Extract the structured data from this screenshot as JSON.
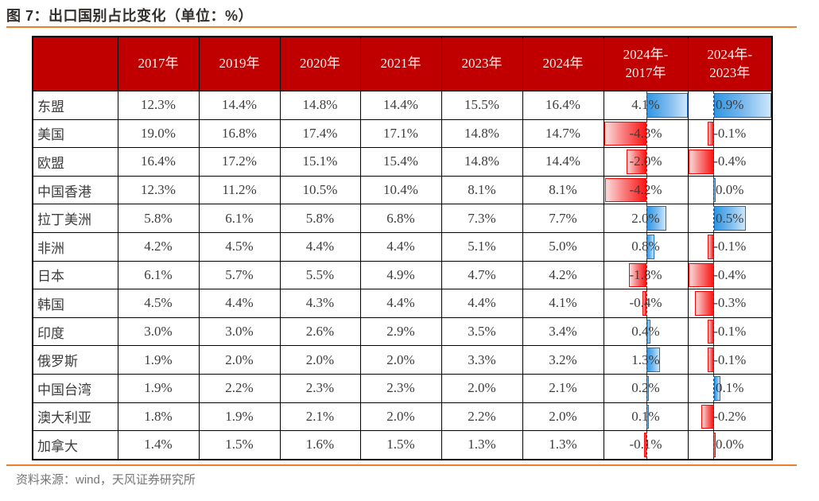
{
  "title": "图 7：出口国别占比变化（单位：%）",
  "source": "资料来源：wind，天风证券研究所",
  "colors": {
    "header_bg": "#C00000",
    "header_text": "#FBEFEF",
    "accent_rule_orange": "#E8802F",
    "cell_text": "#3d3d3d",
    "grid_border": "#000000",
    "bar_blue_solid": "#2F96E3",
    "bar_blue_light": "#CDE7FA",
    "bar_blue_border": "#1473CB",
    "bar_red_solid": "#FB1515",
    "bar_red_light": "#FBDCDC",
    "bar_red_border": "#EF0A0A",
    "zero_axis_dash": "#3a3a3a"
  },
  "chart_data": {
    "type": "table",
    "title": "图 7：出口国别占比变化（单位：%）",
    "columns": [
      "",
      "2017年",
      "2019年",
      "2020年",
      "2021年",
      "2023年",
      "2024年",
      "2024年-2017年",
      "2024年-2023年"
    ],
    "bar_columns": {
      "d1": {
        "label": "2024年-2017年",
        "min": -4.3,
        "max": 4.1
      },
      "d2": {
        "label": "2024年-2023年",
        "min": -0.4,
        "max": 0.9
      }
    },
    "rows": [
      {
        "label": "东盟",
        "values": [
          "12.3%",
          "14.4%",
          "14.8%",
          "14.4%",
          "15.5%",
          "16.4%"
        ],
        "d1": {
          "text": "4.1%",
          "v": 4.1
        },
        "d2": {
          "text": "0.9%",
          "v": 0.9
        }
      },
      {
        "label": "美国",
        "values": [
          "19.0%",
          "16.8%",
          "17.4%",
          "17.1%",
          "14.8%",
          "14.7%"
        ],
        "d1": {
          "text": "-4.3%",
          "v": -4.3
        },
        "d2": {
          "text": "-0.1%",
          "v": -0.1
        }
      },
      {
        "label": "欧盟",
        "values": [
          "16.4%",
          "17.2%",
          "15.1%",
          "15.4%",
          "14.8%",
          "14.4%"
        ],
        "d1": {
          "text": "-2.0%",
          "v": -2.0
        },
        "d2": {
          "text": "-0.4%",
          "v": -0.4
        }
      },
      {
        "label": "中国香港",
        "values": [
          "12.3%",
          "11.2%",
          "10.5%",
          "10.4%",
          "8.1%",
          "8.1%"
        ],
        "d1": {
          "text": "-4.2%",
          "v": -4.2
        },
        "d2": {
          "text": "0.0%",
          "v": 0.0,
          "tint": "blue"
        }
      },
      {
        "label": "拉丁美洲",
        "values": [
          "5.8%",
          "6.1%",
          "5.8%",
          "6.8%",
          "7.3%",
          "7.7%"
        ],
        "d1": {
          "text": "2.0%",
          "v": 2.0
        },
        "d2": {
          "text": "0.5%",
          "v": 0.5
        }
      },
      {
        "label": "非洲",
        "values": [
          "4.2%",
          "4.5%",
          "4.4%",
          "4.4%",
          "5.1%",
          "5.0%"
        ],
        "d1": {
          "text": "0.8%",
          "v": 0.8
        },
        "d2": {
          "text": "-0.1%",
          "v": -0.1
        }
      },
      {
        "label": "日本",
        "values": [
          "6.1%",
          "5.7%",
          "5.5%",
          "4.9%",
          "4.7%",
          "4.2%"
        ],
        "d1": {
          "text": "-1.8%",
          "v": -1.8
        },
        "d2": {
          "text": "-0.4%",
          "v": -0.4
        }
      },
      {
        "label": "韩国",
        "values": [
          "4.5%",
          "4.4%",
          "4.3%",
          "4.4%",
          "4.4%",
          "4.1%"
        ],
        "d1": {
          "text": "-0.4%",
          "v": -0.4
        },
        "d2": {
          "text": "-0.3%",
          "v": -0.3
        }
      },
      {
        "label": "印度",
        "values": [
          "3.0%",
          "3.0%",
          "2.6%",
          "2.9%",
          "3.5%",
          "3.4%"
        ],
        "d1": {
          "text": "0.4%",
          "v": 0.4
        },
        "d2": {
          "text": "-0.1%",
          "v": -0.1
        }
      },
      {
        "label": "俄罗斯",
        "values": [
          "1.9%",
          "2.0%",
          "2.0%",
          "2.0%",
          "3.3%",
          "3.2%"
        ],
        "d1": {
          "text": "1.3%",
          "v": 1.3
        },
        "d2": {
          "text": "-0.1%",
          "v": -0.1
        }
      },
      {
        "label": "中国台湾",
        "values": [
          "1.9%",
          "2.2%",
          "2.3%",
          "2.3%",
          "2.0%",
          "2.1%"
        ],
        "d1": {
          "text": "0.2%",
          "v": 0.2
        },
        "d2": {
          "text": "0.1%",
          "v": 0.1
        }
      },
      {
        "label": "澳大利亚",
        "values": [
          "1.8%",
          "1.9%",
          "2.1%",
          "2.0%",
          "2.2%",
          "2.0%"
        ],
        "d1": {
          "text": "0.1%",
          "v": 0.1
        },
        "d2": {
          "text": "-0.2%",
          "v": -0.2
        }
      },
      {
        "label": "加拿大",
        "values": [
          "1.4%",
          "1.5%",
          "1.6%",
          "1.5%",
          "1.3%",
          "1.3%"
        ],
        "d1": {
          "text": "-0.1%",
          "v": -0.1
        },
        "d2": {
          "text": "0.0%",
          "v": 0.0,
          "tint": "red"
        }
      }
    ]
  }
}
